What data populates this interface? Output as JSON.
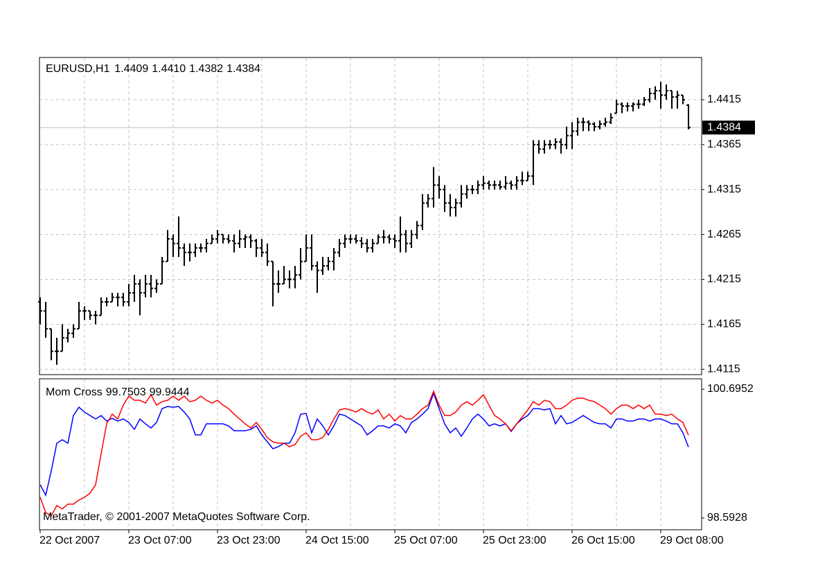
{
  "chart_data": [
    {
      "type": "ohlc",
      "status_line": [
        "EURUSD,H1",
        "1.4409",
        "1.4410",
        "1.4382",
        "1.4384"
      ],
      "color": "#000000",
      "ylim": [
        1.4109,
        1.4462
      ],
      "yticks": [
        1.4115,
        1.4165,
        1.4215,
        1.4265,
        1.4315,
        1.4365,
        1.4415
      ],
      "grid": true,
      "last_price": 1.4384,
      "open": [
        1.419,
        1.418,
        1.416,
        1.4135,
        1.4135,
        1.415,
        1.4155,
        1.416,
        1.418,
        1.418,
        1.4175,
        1.4175,
        1.419,
        1.419,
        1.4195,
        1.4195,
        1.419,
        1.42,
        1.421,
        1.42,
        1.421,
        1.4205,
        1.421,
        1.4235,
        1.426,
        1.4255,
        1.425,
        1.4245,
        1.4245,
        1.425,
        1.425,
        1.4255,
        1.426,
        1.4265,
        1.426,
        1.4258,
        1.4255,
        1.426,
        1.4262,
        1.4258,
        1.425,
        1.4245,
        1.4235,
        1.421,
        1.421,
        1.4215,
        1.4215,
        1.422,
        1.4235,
        1.425,
        1.423,
        1.4225,
        1.423,
        1.4235,
        1.4245,
        1.4255,
        1.426,
        1.426,
        1.4258,
        1.4255,
        1.425,
        1.4255,
        1.4262,
        1.4262,
        1.426,
        1.4258,
        1.4265,
        1.4255,
        1.4265,
        1.4275,
        1.43,
        1.4305,
        1.432,
        1.4315,
        1.43,
        1.4295,
        1.43,
        1.431,
        1.4315,
        1.4315,
        1.432,
        1.4322,
        1.432,
        1.432,
        1.4318,
        1.4322,
        1.432,
        1.4325,
        1.4325,
        1.433,
        1.4365,
        1.436,
        1.4365,
        1.4365,
        1.4368,
        1.4365,
        1.4375,
        1.438,
        1.439,
        1.439,
        1.4388,
        1.4385,
        1.4388,
        1.439,
        1.44,
        1.441,
        1.4408,
        1.4408,
        1.441,
        1.441,
        1.4415,
        1.4422,
        1.4425,
        1.442,
        1.4425,
        1.4418,
        1.442,
        1.4409
      ],
      "high": [
        1.4195,
        1.419,
        1.416,
        1.415,
        1.4165,
        1.416,
        1.4165,
        1.419,
        1.4185,
        1.418,
        1.418,
        1.4195,
        1.4195,
        1.42,
        1.42,
        1.42,
        1.421,
        1.422,
        1.4215,
        1.422,
        1.422,
        1.4215,
        1.424,
        1.427,
        1.4265,
        1.4285,
        1.4255,
        1.4255,
        1.4255,
        1.4255,
        1.426,
        1.4265,
        1.427,
        1.4265,
        1.4265,
        1.4265,
        1.427,
        1.4265,
        1.4265,
        1.426,
        1.426,
        1.4255,
        1.4235,
        1.4225,
        1.423,
        1.4225,
        1.423,
        1.425,
        1.4265,
        1.4265,
        1.4235,
        1.424,
        1.424,
        1.425,
        1.426,
        1.4265,
        1.4265,
        1.4265,
        1.4262,
        1.426,
        1.426,
        1.4265,
        1.427,
        1.4265,
        1.4265,
        1.4285,
        1.427,
        1.427,
        1.428,
        1.431,
        1.431,
        1.434,
        1.433,
        1.432,
        1.431,
        1.4305,
        1.432,
        1.432,
        1.432,
        1.4325,
        1.433,
        1.4325,
        1.4325,
        1.4325,
        1.433,
        1.4325,
        1.433,
        1.4335,
        1.4335,
        1.437,
        1.437,
        1.437,
        1.437,
        1.4372,
        1.4372,
        1.4385,
        1.439,
        1.4395,
        1.4395,
        1.4392,
        1.439,
        1.4392,
        1.4395,
        1.44,
        1.4415,
        1.4412,
        1.4412,
        1.4412,
        1.4415,
        1.4418,
        1.4428,
        1.443,
        1.4435,
        1.4432,
        1.4425,
        1.4425,
        1.442,
        1.441
      ],
      "low": [
        1.4165,
        1.415,
        1.4125,
        1.412,
        1.4135,
        1.4145,
        1.415,
        1.416,
        1.417,
        1.417,
        1.4165,
        1.4175,
        1.4185,
        1.419,
        1.4185,
        1.4185,
        1.4185,
        1.419,
        1.4175,
        1.4195,
        1.4195,
        1.42,
        1.421,
        1.4235,
        1.424,
        1.424,
        1.423,
        1.4235,
        1.424,
        1.4245,
        1.4245,
        1.4255,
        1.4255,
        1.4255,
        1.4255,
        1.4245,
        1.425,
        1.425,
        1.425,
        1.424,
        1.424,
        1.423,
        1.4185,
        1.42,
        1.421,
        1.4205,
        1.4205,
        1.4215,
        1.4235,
        1.4225,
        1.42,
        1.422,
        1.4225,
        1.4225,
        1.424,
        1.425,
        1.4255,
        1.4255,
        1.425,
        1.4245,
        1.4245,
        1.4255,
        1.4255,
        1.4255,
        1.425,
        1.4245,
        1.4245,
        1.425,
        1.426,
        1.427,
        1.4295,
        1.4295,
        1.4305,
        1.429,
        1.4285,
        1.4285,
        1.4295,
        1.4305,
        1.431,
        1.431,
        1.4315,
        1.4315,
        1.4315,
        1.4315,
        1.4315,
        1.4315,
        1.4315,
        1.432,
        1.4325,
        1.432,
        1.4355,
        1.4355,
        1.436,
        1.436,
        1.4355,
        1.436,
        1.436,
        1.4375,
        1.438,
        1.438,
        1.438,
        1.4382,
        1.4385,
        1.4388,
        1.44,
        1.44,
        1.4402,
        1.4402,
        1.4405,
        1.4408,
        1.4412,
        1.4415,
        1.4405,
        1.4415,
        1.4405,
        1.4405,
        1.441,
        1.4382
      ],
      "close": [
        1.418,
        1.416,
        1.4135,
        1.4135,
        1.415,
        1.4155,
        1.416,
        1.418,
        1.418,
        1.4175,
        1.4175,
        1.419,
        1.419,
        1.4195,
        1.4195,
        1.419,
        1.42,
        1.421,
        1.42,
        1.421,
        1.4205,
        1.421,
        1.4235,
        1.426,
        1.4255,
        1.425,
        1.4245,
        1.4245,
        1.425,
        1.425,
        1.4255,
        1.426,
        1.4265,
        1.426,
        1.4258,
        1.4255,
        1.426,
        1.4262,
        1.4258,
        1.425,
        1.4245,
        1.4235,
        1.421,
        1.421,
        1.4215,
        1.4215,
        1.422,
        1.4235,
        1.425,
        1.423,
        1.4225,
        1.423,
        1.4235,
        1.4245,
        1.4255,
        1.426,
        1.426,
        1.4258,
        1.4255,
        1.425,
        1.4255,
        1.4262,
        1.4262,
        1.426,
        1.4258,
        1.4265,
        1.4255,
        1.4265,
        1.4275,
        1.43,
        1.4305,
        1.432,
        1.4315,
        1.43,
        1.4295,
        1.43,
        1.431,
        1.4315,
        1.4315,
        1.432,
        1.4322,
        1.432,
        1.432,
        1.4318,
        1.4322,
        1.432,
        1.4325,
        1.4325,
        1.433,
        1.4365,
        1.436,
        1.4365,
        1.4365,
        1.4368,
        1.4365,
        1.4375,
        1.438,
        1.439,
        1.439,
        1.4388,
        1.4385,
        1.4388,
        1.439,
        1.4395,
        1.441,
        1.4408,
        1.4408,
        1.441,
        1.441,
        1.4415,
        1.4422,
        1.4425,
        1.442,
        1.4425,
        1.4418,
        1.442,
        1.4415,
        1.4384
      ]
    },
    {
      "type": "line",
      "title": "Mom Cross",
      "annotation": "MetaTrader, © 2001-2007 MetaQuotes Software Corp.",
      "ylim": [
        98.5928,
        100.6952
      ],
      "yticks": [
        98.5928,
        100.6952
      ],
      "grid": "x",
      "categories": [
        "22 Oct 2007",
        null,
        null,
        null,
        null,
        null,
        null,
        null,
        null,
        null,
        null,
        null,
        null,
        null,
        null,
        null,
        "23 Oct 07:00",
        null,
        null,
        null,
        null,
        null,
        null,
        null,
        null,
        null,
        null,
        null,
        null,
        null,
        null,
        null,
        "23 Oct 23:00",
        null,
        null,
        null,
        null,
        null,
        null,
        null,
        null,
        null,
        null,
        null,
        null,
        null,
        null,
        null,
        "24 Oct 15:00",
        null,
        null,
        null,
        null,
        null,
        null,
        null,
        null,
        null,
        null,
        null,
        null,
        null,
        null,
        null,
        "25 Oct 07:00",
        null,
        null,
        null,
        null,
        null,
        null,
        null,
        null,
        null,
        null,
        null,
        null,
        null,
        null,
        null,
        "25 Oct 23:00",
        null,
        null,
        null,
        null,
        null,
        null,
        null,
        null,
        null,
        null,
        null,
        null,
        null,
        null,
        null,
        "26 Oct 15:00",
        null,
        null,
        null,
        null,
        null,
        null,
        null,
        null,
        null,
        null,
        null,
        null,
        null,
        null,
        null,
        "29 Oct 08:00",
        null,
        null,
        null,
        null,
        null
      ],
      "series": [
        {
          "color": "#0000ff",
          "values": [
            99.135,
            98.966,
            99.361,
            99.813,
            99.87,
            99.813,
            100.265,
            100.401,
            100.322,
            100.265,
            100.209,
            100.265,
            100.175,
            100.22,
            100.175,
            100.209,
            100.152,
            100.039,
            100.209,
            100.13,
            100.062,
            100.152,
            100.378,
            100.412,
            100.401,
            100.412,
            100.322,
            100.209,
            99.949,
            99.949,
            100.13,
            100.13,
            100.13,
            100.13,
            100.096,
            100.017,
            100.017,
            100.017,
            100.039,
            100.096,
            99.949,
            99.836,
            99.723,
            99.757,
            99.813,
            99.813,
            99.983,
            100.288,
            100.299,
            99.983,
            100.209,
            100.096,
            99.949,
            100.096,
            100.288,
            100.265,
            100.209,
            100.152,
            100.096,
            99.949,
            100.017,
            100.096,
            100.096,
            100.062,
            100.13,
            100.096,
            99.983,
            100.152,
            100.209,
            100.288,
            100.378,
            100.627,
            100.378,
            100.13,
            99.983,
            100.062,
            99.926,
            100.062,
            100.209,
            100.288,
            100.209,
            100.096,
            100.13,
            100.096,
            100.13,
            100.005,
            100.13,
            100.209,
            100.265,
            100.378,
            100.378,
            100.356,
            100.378,
            100.13,
            100.265,
            100.13,
            100.152,
            100.209,
            100.265,
            100.209,
            100.152,
            100.13,
            100.13,
            100.062,
            100.209,
            100.209,
            100.175,
            100.175,
            100.209,
            100.209,
            100.175,
            100.209,
            100.209,
            100.175,
            100.13,
            100.13,
            99.983,
            99.7503
          ]
        },
        {
          "color": "#ff0000",
          "values": [
            98.932,
            98.683,
            98.627,
            98.796,
            98.74,
            98.819,
            98.819,
            98.886,
            98.932,
            98.999,
            99.135,
            99.644,
            100.13,
            100.288,
            100.209,
            100.435,
            100.582,
            100.514,
            100.514,
            100.469,
            100.604,
            100.435,
            100.491,
            100.514,
            100.582,
            100.514,
            100.582,
            100.491,
            100.514,
            100.582,
            100.514,
            100.469,
            100.514,
            100.435,
            100.378,
            100.288,
            100.209,
            100.13,
            100.062,
            100.152,
            100.039,
            99.904,
            99.836,
            99.813,
            99.813,
            99.757,
            99.791,
            99.926,
            99.983,
            99.87,
            99.87,
            99.904,
            100.039,
            100.209,
            100.356,
            100.378,
            100.356,
            100.322,
            100.378,
            100.322,
            100.288,
            100.356,
            100.209,
            100.288,
            100.175,
            100.265,
            100.209,
            100.209,
            100.288,
            100.378,
            100.435,
            100.661,
            100.435,
            100.265,
            100.265,
            100.322,
            100.435,
            100.491,
            100.435,
            100.514,
            100.604,
            100.435,
            100.265,
            100.209,
            100.13,
            100.017,
            100.13,
            100.243,
            100.356,
            100.491,
            100.435,
            100.514,
            100.491,
            100.378,
            100.378,
            100.435,
            100.514,
            100.548,
            100.548,
            100.514,
            100.491,
            100.435,
            100.378,
            100.288,
            100.378,
            100.435,
            100.435,
            100.378,
            100.435,
            100.378,
            100.435,
            100.288,
            100.288,
            100.265,
            100.288,
            100.209,
            100.152,
            99.9444
          ]
        }
      ]
    }
  ]
}
